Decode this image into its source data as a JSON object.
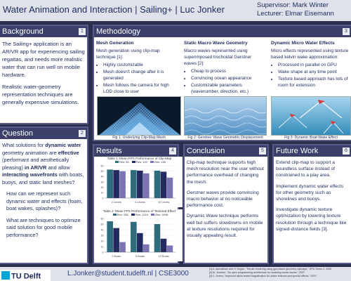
{
  "header": {
    "title": "Water Animation and Interaction | Sailing+ | Luc Jonker",
    "supervisor": "Supervisor:  Mark Winter",
    "lecturer": "Lecturer: Elmar Eisemann"
  },
  "background": {
    "heading": "Background",
    "num": "1",
    "p1": "The Sailing+ application is an AR/VR app for experiencing sailing regattas, and needs more realistic water that can run well on mobile hardware.",
    "p2": "Realistic water-geometry representation techniques are generally expensive simulations."
  },
  "question": {
    "heading": "Question",
    "num": "2",
    "q_parts": [
      "What solutions for ",
      "dynamic water",
      " geometry animation are ",
      "effective",
      " (performant and aesthetically pleasing) ",
      "in AR/VR",
      " and allow ",
      "interacting wavefronts",
      " with boats, buoys, and static land meshes?"
    ],
    "sub1": "How can we represent such dynamic water and effects (foam, boat wakes, splashes)?",
    "sub2": "What are techniques to optimize said solution for good mobile performance?"
  },
  "methodology": {
    "heading": "Methodology",
    "num": "3",
    "mesh": {
      "title": "Mesh Generation",
      "text": "Mesh generation using clip-map technique [1]:",
      "bullets": [
        "Highly customizable",
        "Mesh doesn't change after it is generated",
        "Mesh follows the camera for high LOD close to user"
      ],
      "caption": "Fig 1: Underlying Clip-Map Mesh"
    },
    "static": {
      "title": "Static Macro Wave Geometry",
      "text": "Macro waves represented using superimposed trochoidal Gerstner waves [2]:",
      "bullets": [
        "Cheap to process",
        "Convincing ocean appearance",
        "Customizable parameters (wavenumber, direction, etc.)"
      ],
      "caption": "Fig 2: Gerstner Wave Geometric Displacement"
    },
    "micro": {
      "title": "Dynamic Micro Water Effects",
      "text": "Micro effects represented using texture based kelvin wake approximation:",
      "bullets": [
        "Processed in parallel on GPU",
        "Wake shape at any time point",
        "Texture based approach has lots of room for extension"
      ],
      "caption": "Fig 3: Dynamic Boat Wake Effect"
    }
  },
  "results": {
    "heading": "Results",
    "num": "4"
  },
  "conclusion": {
    "heading": "Conclusion",
    "num": "5",
    "p1": "Clip-map technique supports high mesh resolution near the user without performance overhead of changing the mesh.",
    "p2": "Gerstner waves provide convincing macro behavior at no noticeable performance cost.",
    "p3": "Dynamic Wave technique performs well but suffers slowdowns on mobile at texture resolutions required for visually appealing result."
  },
  "future": {
    "heading": "Future Work",
    "num": "6",
    "p1": "Extend clip-map to support a boundless surface instead of constrained to a play area.",
    "p2": "Implement dynamic water effects for other geometry such as shorelines and buoys.",
    "p3": "Investigate dynamic texture optimization by lowering texture resolution through a technique like signed-distance fields [3]."
  },
  "footer": {
    "logo": "TU Delft",
    "email": "L.Jonker@student.tudelft.nl | CSE3000",
    "refs": [
      "[1] A. Asirvatham and H. Hoppe, \"Terrain rendering using gpu-based geometry clipmaps,\" GPU Gems 2, 2005.",
      "[2] M. Jeschke, \"An open programming architecture for modeling ocean waves,\" 2007.",
      "[3] C. Green, \"Improved alpha-tested magnification for vector textures and special effects,\" 2007."
    ]
  },
  "chart_data": [
    {
      "type": "bar",
      "title": "Table 1: Mean FPS Performance of Clip-Map",
      "categories": [
        "2 Levels",
        "6 Levels",
        "10 Levels"
      ],
      "series": [
        {
          "name": "Res: 50",
          "color": "#2e6b7d",
          "values": [
            53,
            52,
            51
          ]
        },
        {
          "name": "Res: 100",
          "color": "#232a60",
          "values": [
            52,
            51,
            49
          ]
        },
        {
          "name": "Res: 150",
          "color": "#7a74b3",
          "values": [
            50,
            46,
            38
          ]
        }
      ],
      "ylim": [
        0,
        60
      ],
      "yticks": [
        "0",
        "10",
        "20",
        "30",
        "40",
        "50",
        "60"
      ]
    },
    {
      "type": "bar",
      "title": "Table 2: Mean FPS Performance of Textured Effect",
      "categories": [
        "2 Boats",
        "5 Boats",
        "10 Boats"
      ],
      "series": [
        {
          "name": "Res: 256",
          "color": "#2e6b7d",
          "values": [
            55,
            54,
            50
          ]
        },
        {
          "name": "Res: 1024",
          "color": "#232a60",
          "values": [
            43,
            34,
            24
          ]
        },
        {
          "name": "Res: 4096",
          "color": "#7a74b3",
          "values": [
            18,
            14,
            12
          ]
        }
      ],
      "ylim": [
        0,
        60
      ],
      "yticks": [
        "0",
        "10",
        "20",
        "30",
        "40",
        "50",
        "60"
      ]
    }
  ]
}
